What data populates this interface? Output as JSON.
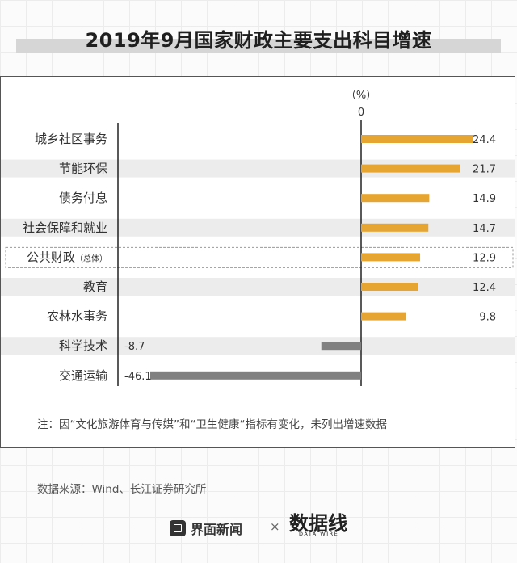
{
  "title": "2019年9月国家财政主要支出科目增速",
  "chart_data": {
    "type": "bar",
    "orientation": "horizontal",
    "unit_label": "（%）",
    "zero_label": "0",
    "categories": [
      "城乡社区事务",
      "节能环保",
      "债务付息",
      "社会保障和就业",
      "公共财政",
      "教育",
      "农林水事务",
      "科学技术",
      "交通运输"
    ],
    "category_suffix": [
      "",
      "",
      "",
      "",
      "（总体）",
      "",
      "",
      "",
      ""
    ],
    "values": [
      24.4,
      21.7,
      14.9,
      14.7,
      12.9,
      12.4,
      9.8,
      -8.7,
      -46.1
    ],
    "value_labels": [
      "24.4",
      "21.7",
      "14.9",
      "14.7",
      "12.9",
      "12.4",
      "9.8",
      "-8.7",
      "-46.1"
    ],
    "highlighted_category": "公共财政",
    "xlim": [
      -47,
      25
    ],
    "colors": {
      "positive": "#e5a530",
      "negative": "#808080",
      "stripe": "#ececec"
    }
  },
  "note": "注：因“文化旅游体育与传媒”和“卫生健康“指标有变化，未列出增速数据",
  "source": "数据来源：Wind、长江证券研究所",
  "footer": {
    "brand_jiemian": "界面新闻",
    "times": "×",
    "brand_logo": "数据线",
    "brand_logo_sub": "DATA WIRE",
    "icons": {
      "jiemian": "jiemian-logo-icon",
      "datawire": "datawire-logo-icon"
    }
  }
}
